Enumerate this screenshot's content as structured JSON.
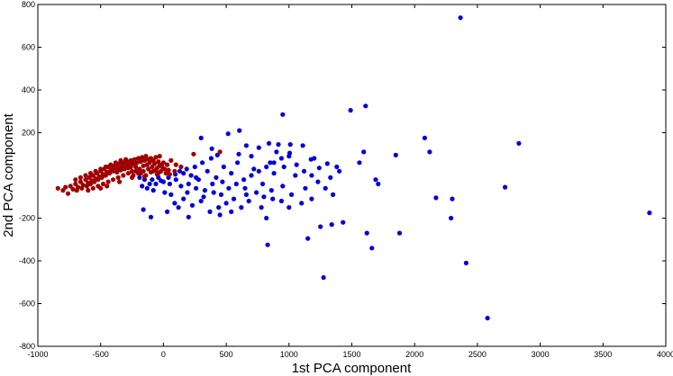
{
  "chart_data": {
    "type": "scatter",
    "title": "",
    "xlabel": "1st PCA component",
    "ylabel": "2nd PCA component",
    "xlim": [
      -1000,
      4000
    ],
    "ylim": [
      -800,
      800
    ],
    "xticks": [
      -1000,
      -500,
      0,
      500,
      1000,
      1500,
      2000,
      2500,
      3000,
      3500,
      4000
    ],
    "yticks": [
      -800,
      -600,
      -400,
      -200,
      200,
      400,
      600,
      800
    ],
    "grid": false,
    "legend": "none",
    "colors": {
      "blue": "#0000dd",
      "red": "#a00000"
    },
    "series": [
      {
        "color": "#0000dd",
        "points": [
          [
            2365,
            738
          ],
          [
            1610,
            325
          ],
          [
            1490,
            305
          ],
          [
            950,
            285
          ],
          [
            2830,
            150
          ],
          [
            2080,
            175
          ],
          [
            2120,
            110
          ],
          [
            1850,
            95
          ],
          [
            1595,
            110
          ],
          [
            1560,
            60
          ],
          [
            1305,
            55
          ],
          [
            1400,
            20
          ],
          [
            1240,
            35
          ],
          [
            1175,
            75
          ],
          [
            1110,
            140
          ],
          [
            1010,
            145
          ],
          [
            1005,
            105
          ],
          [
            915,
            145
          ],
          [
            840,
            150
          ],
          [
            760,
            130
          ],
          [
            660,
            140
          ],
          [
            605,
            210
          ],
          [
            515,
            195
          ],
          [
            300,
            175
          ],
          [
            385,
            125
          ],
          [
            430,
            95
          ],
          [
            380,
            80
          ],
          [
            310,
            60
          ],
          [
            250,
            40
          ],
          [
            185,
            30
          ],
          [
            130,
            20
          ],
          [
            95,
            5
          ],
          [
            40,
            -10
          ],
          [
            -20,
            -25
          ],
          [
            -60,
            -40
          ],
          [
            -110,
            -40
          ],
          [
            -150,
            -20
          ],
          [
            -190,
            -10
          ],
          [
            -130,
            -60
          ],
          [
            -80,
            -70
          ],
          [
            10,
            -80
          ],
          [
            60,
            -90
          ],
          [
            140,
            -50
          ],
          [
            200,
            -40
          ],
          [
            260,
            -60
          ],
          [
            330,
            -70
          ],
          [
            400,
            -80
          ],
          [
            460,
            -90
          ],
          [
            520,
            -60
          ],
          [
            580,
            -40
          ],
          [
            640,
            -20
          ],
          [
            700,
            0
          ],
          [
            760,
            20
          ],
          [
            820,
            40
          ],
          [
            880,
            60
          ],
          [
            940,
            80
          ],
          [
            1000,
            90
          ],
          [
            1060,
            50
          ],
          [
            1120,
            20
          ],
          [
            1180,
            0
          ],
          [
            1230,
            -30
          ],
          [
            1290,
            -60
          ],
          [
            1350,
            -90
          ],
          [
            1180,
            -110
          ],
          [
            1100,
            -130
          ],
          [
            1020,
            -90
          ],
          [
            940,
            -120
          ],
          [
            870,
            -110
          ],
          [
            800,
            -100
          ],
          [
            740,
            -80
          ],
          [
            680,
            -120
          ],
          [
            620,
            -150
          ],
          [
            560,
            -110
          ],
          [
            500,
            -130
          ],
          [
            440,
            -150
          ],
          [
            370,
            -170
          ],
          [
            300,
            -120
          ],
          [
            230,
            -140
          ],
          [
            160,
            -110
          ],
          [
            90,
            -130
          ],
          [
            30,
            -170
          ],
          [
            -100,
            -195
          ],
          [
            -160,
            -160
          ],
          [
            200,
            -195
          ],
          [
            450,
            -185
          ],
          [
            820,
            -200
          ],
          [
            1000,
            -150
          ],
          [
            1250,
            -240
          ],
          [
            1340,
            -230
          ],
          [
            1430,
            -220
          ],
          [
            1690,
            -20
          ],
          [
            1710,
            -40
          ],
          [
            1880,
            -270
          ],
          [
            1620,
            -270
          ],
          [
            1660,
            -340
          ],
          [
            1150,
            -295
          ],
          [
            830,
            -325
          ],
          [
            1275,
            -478
          ],
          [
            2410,
            -410
          ],
          [
            2580,
            -668
          ],
          [
            3870,
            -175
          ],
          [
            2720,
            -55
          ],
          [
            2170,
            -105
          ],
          [
            2300,
            -110
          ],
          [
            2290,
            -200
          ],
          [
            850,
            60
          ],
          [
            880,
            10
          ],
          [
            790,
            -40
          ],
          [
            720,
            30
          ],
          [
            650,
            -60
          ],
          [
            590,
            60
          ],
          [
            540,
            10
          ],
          [
            480,
            40
          ],
          [
            420,
            -10
          ],
          [
            350,
            20
          ],
          [
            280,
            -20
          ],
          [
            220,
            0
          ],
          [
            160,
            10
          ],
          [
            100,
            -20
          ],
          [
            50,
            -40
          ],
          [
            0,
            -30
          ],
          [
            -40,
            -10
          ],
          [
            -90,
            -20
          ],
          [
            -170,
            -50
          ],
          [
            600,
            100
          ],
          [
            700,
            90
          ],
          [
            900,
            110
          ],
          [
            960,
            40
          ],
          [
            1050,
            0
          ],
          [
            1130,
            -60
          ],
          [
            1200,
            80
          ],
          [
            1330,
            -10
          ],
          [
            1380,
            40
          ],
          [
            950,
            -50
          ],
          [
            860,
            -70
          ],
          [
            780,
            -150
          ],
          [
            660,
            -90
          ],
          [
            540,
            -170
          ],
          [
            470,
            -30
          ],
          [
            390,
            -40
          ],
          [
            320,
            -100
          ],
          [
            260,
            -10
          ],
          [
            190,
            -80
          ],
          [
            120,
            -150
          ]
        ]
      },
      {
        "color": "#a00000",
        "points": [
          [
            -840,
            -60
          ],
          [
            -800,
            -70
          ],
          [
            -780,
            -55
          ],
          [
            -760,
            -85
          ],
          [
            -740,
            -50
          ],
          [
            -720,
            -65
          ],
          [
            -700,
            -40
          ],
          [
            -690,
            -70
          ],
          [
            -680,
            -55
          ],
          [
            -660,
            -30
          ],
          [
            -650,
            -60
          ],
          [
            -640,
            -45
          ],
          [
            -620,
            -20
          ],
          [
            -610,
            -50
          ],
          [
            -600,
            -35
          ],
          [
            -590,
            -10
          ],
          [
            -580,
            -40
          ],
          [
            -570,
            -25
          ],
          [
            -560,
            0
          ],
          [
            -550,
            -30
          ],
          [
            -540,
            -15
          ],
          [
            -530,
            10
          ],
          [
            -520,
            -20
          ],
          [
            -510,
            -5
          ],
          [
            -500,
            20
          ],
          [
            -490,
            -10
          ],
          [
            -480,
            5
          ],
          [
            -470,
            30
          ],
          [
            -460,
            0
          ],
          [
            -450,
            15
          ],
          [
            -440,
            40
          ],
          [
            -430,
            10
          ],
          [
            -420,
            25
          ],
          [
            -410,
            45
          ],
          [
            -400,
            20
          ],
          [
            -390,
            30
          ],
          [
            -380,
            50
          ],
          [
            -370,
            15
          ],
          [
            -360,
            35
          ],
          [
            -350,
            55
          ],
          [
            -340,
            25
          ],
          [
            -330,
            40
          ],
          [
            -320,
            60
          ],
          [
            -310,
            30
          ],
          [
            -300,
            45
          ],
          [
            -290,
            65
          ],
          [
            -280,
            35
          ],
          [
            -270,
            50
          ],
          [
            -260,
            70
          ],
          [
            -250,
            20
          ],
          [
            -240,
            55
          ],
          [
            -230,
            75
          ],
          [
            -220,
            40
          ],
          [
            -210,
            60
          ],
          [
            -200,
            80
          ],
          [
            -190,
            30
          ],
          [
            -180,
            65
          ],
          [
            -170,
            85
          ],
          [
            -160,
            45
          ],
          [
            -150,
            70
          ],
          [
            -140,
            90
          ],
          [
            -130,
            50
          ],
          [
            -120,
            75
          ],
          [
            -110,
            60
          ],
          [
            -100,
            80
          ],
          [
            -90,
            40
          ],
          [
            -80,
            70
          ],
          [
            -70,
            55
          ],
          [
            -60,
            85
          ],
          [
            -50,
            35
          ],
          [
            -40,
            65
          ],
          [
            -30,
            50
          ],
          [
            -20,
            20
          ],
          [
            -10,
            40
          ],
          [
            0,
            60
          ],
          [
            10,
            30
          ],
          [
            20,
            10
          ],
          [
            30,
            50
          ],
          [
            40,
            25
          ],
          [
            50,
            5
          ],
          [
            -600,
            -70
          ],
          [
            -560,
            -60
          ],
          [
            -520,
            -50
          ],
          [
            -480,
            -40
          ],
          [
            -440,
            -30
          ],
          [
            -400,
            -20
          ],
          [
            -360,
            -10
          ],
          [
            -320,
            0
          ],
          [
            -280,
            10
          ],
          [
            -240,
            0
          ],
          [
            -200,
            10
          ],
          [
            -160,
            20
          ],
          [
            -120,
            30
          ],
          [
            -80,
            20
          ],
          [
            -40,
            10
          ],
          [
            -700,
            -20
          ],
          [
            -660,
            -10
          ],
          [
            -620,
            0
          ],
          [
            -580,
            10
          ],
          [
            -540,
            20
          ],
          [
            -500,
            30
          ],
          [
            -460,
            40
          ],
          [
            -420,
            50
          ],
          [
            -380,
            60
          ],
          [
            -340,
            70
          ],
          [
            -300,
            75
          ],
          [
            -260,
            40
          ],
          [
            -220,
            20
          ],
          [
            -180,
            10
          ],
          [
            -140,
            0
          ],
          [
            -100,
            15
          ],
          [
            -60,
            25
          ],
          [
            -20,
            45
          ],
          [
            60,
            70
          ],
          [
            100,
            50
          ],
          [
            140,
            40
          ],
          [
            240,
            100
          ],
          [
            450,
            110
          ],
          [
            90,
            20
          ],
          [
            -30,
            90
          ],
          [
            -500,
            -60
          ],
          [
            -450,
            -50
          ],
          [
            -350,
            -30
          ],
          [
            -250,
            -10
          ],
          [
            -150,
            -5
          ],
          [
            -50,
            5
          ]
        ]
      }
    ]
  }
}
